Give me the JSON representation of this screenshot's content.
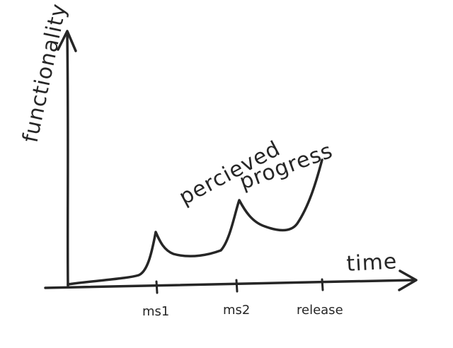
{
  "labels": {
    "y_axis": "functionality",
    "x_axis": "time",
    "curve_line1": "percieved",
    "curve_line2": "progress"
  },
  "milestones": [
    {
      "label": "ms1"
    },
    {
      "label": "ms2"
    },
    {
      "label": "release"
    }
  ],
  "colors": {
    "ink": "#262626",
    "paper": "#ffffff"
  }
}
